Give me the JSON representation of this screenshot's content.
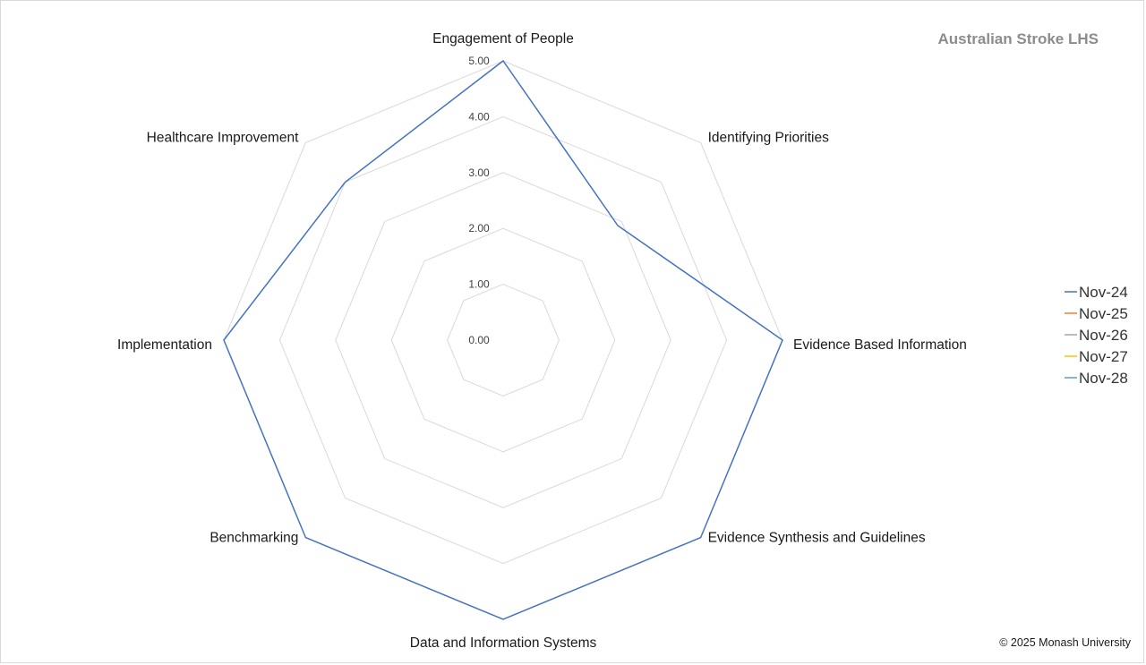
{
  "chart_data": {
    "type": "radar",
    "title": "Australian Stroke LHS",
    "copyright": "© 2025 Monash University",
    "axes": [
      "Engagement of People",
      "Identifying Priorities",
      "Evidence Based Information",
      "Evidence Synthesis and Guidelines",
      "Data and Information Systems",
      "Benchmarking",
      "Implementation",
      "Healthcare Improvement"
    ],
    "rlim": [
      0,
      5
    ],
    "ticks": [
      "0.00",
      "1.00",
      "2.00",
      "3.00",
      "4.00",
      "5.00"
    ],
    "tick_values": [
      0,
      1,
      2,
      3,
      4,
      5
    ],
    "grid": true,
    "legend_position": "right",
    "series": [
      {
        "name": "Nov-24",
        "color": "#4472c4",
        "values": [
          5,
          2.9,
          5,
          5,
          5,
          5,
          5,
          4
        ]
      },
      {
        "name": "Nov-25",
        "color": "#ed7d31",
        "values": []
      },
      {
        "name": "Nov-26",
        "color": "#a5a5a5",
        "values": []
      },
      {
        "name": "Nov-27",
        "color": "#ffc000",
        "values": []
      },
      {
        "name": "Nov-28",
        "color": "#5b9bd5",
        "values": []
      }
    ]
  }
}
